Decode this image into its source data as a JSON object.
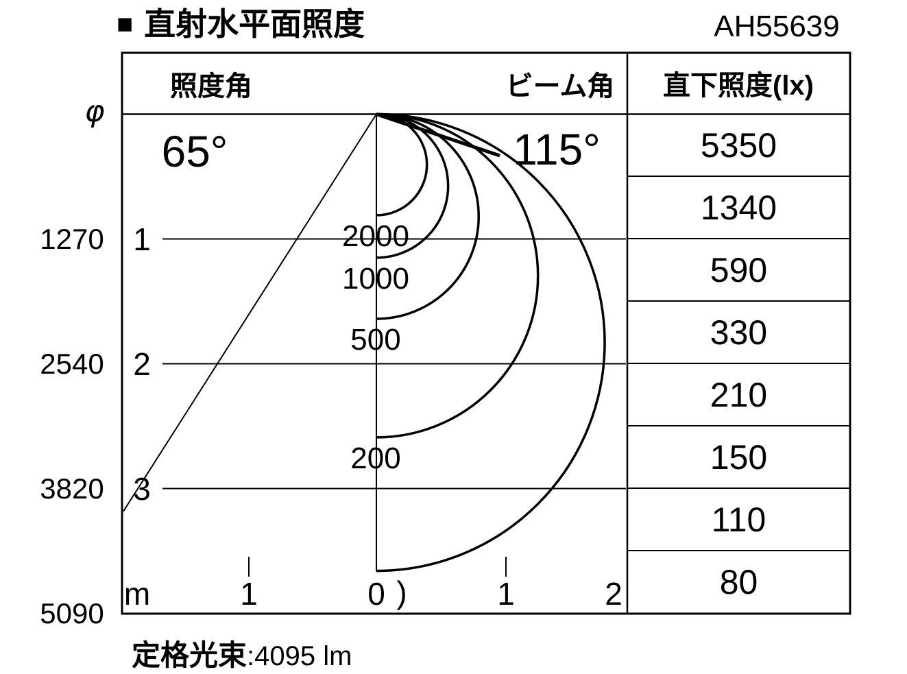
{
  "page": {
    "title_marker": "■",
    "title": "直射水平面照度",
    "model_number": "AH55639",
    "footer": {
      "label": "定格光束",
      "separator": " : ",
      "value": "4095 lm"
    }
  },
  "chart_data": {
    "type": "line",
    "subtype": "isolux-contour-cone-diagram",
    "title": "直射水平面照度",
    "panel_headers": {
      "left": "照度角",
      "right": "ビーム角"
    },
    "illuminance_angle": {
      "label": "65°",
      "degrees": 65
    },
    "beam_angle": {
      "label": "115°",
      "degrees": 115
    },
    "diameter_axis": {
      "symbol": "φ",
      "values": [
        "1270",
        "2540",
        "3820",
        "5090"
      ]
    },
    "depth_axis": {
      "unit_label": "m",
      "tick_labels": [
        "1",
        "2",
        "3"
      ],
      "range_m": [
        0,
        4
      ]
    },
    "x_axis": {
      "tick_labels": [
        "1",
        "0",
        "1",
        "2"
      ],
      "range_m": [
        -1,
        2
      ]
    },
    "isolux_contours": [
      {
        "label": "2000",
        "lux": 2000,
        "on_axis_depth_m": 0.81
      },
      {
        "label": "1000",
        "lux": 1000,
        "on_axis_depth_m": 1.15
      },
      {
        "label": "500",
        "lux": 500,
        "on_axis_depth_m": 1.64
      },
      {
        "label": "200",
        "lux": 200,
        "on_axis_depth_m": 2.59
      },
      {
        "label": "",
        "lux": null,
        "on_axis_depth_m": 3.66
      }
    ],
    "curve_fragment_glyph": ")",
    "table": {
      "header": "直下照度(lx)",
      "values": [
        "5350",
        "1340",
        "590",
        "330",
        "210",
        "150",
        "110",
        "80"
      ]
    },
    "rated_luminous_flux_text": "定格光束 : 4095 lm",
    "colors": {
      "ink": "#000000",
      "background": "#ffffff"
    },
    "legend_position": "none",
    "grid": true
  }
}
